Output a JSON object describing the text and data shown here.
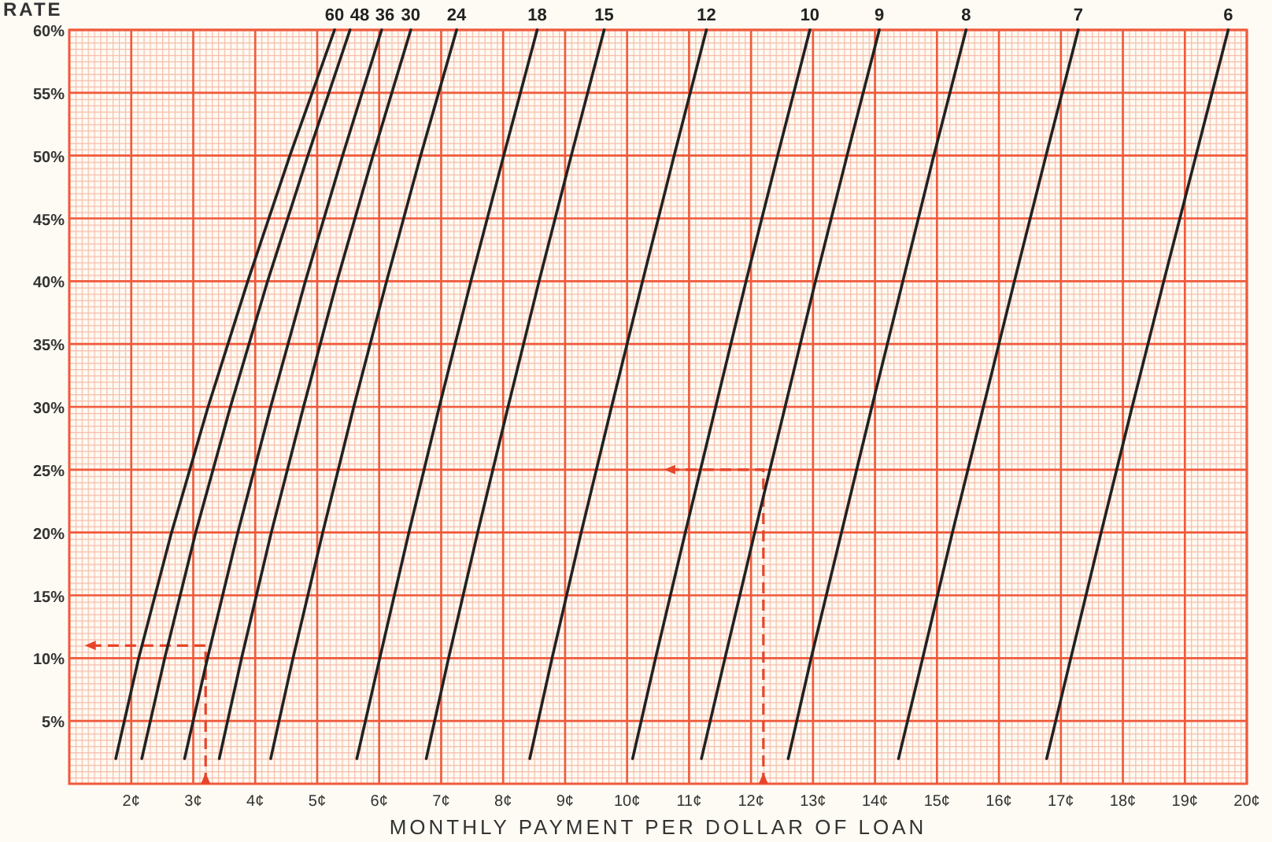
{
  "chart_data": {
    "type": "line",
    "ylabel": "RATE",
    "xlabel": "MONTHLY PAYMENT PER DOLLAR OF LOAN",
    "xlim": [
      1,
      20
    ],
    "xticks": [
      {
        "value": 2,
        "label": "2¢"
      },
      {
        "value": 3,
        "label": "3¢"
      },
      {
        "value": 4,
        "label": "4¢"
      },
      {
        "value": 5,
        "label": "5¢"
      },
      {
        "value": 6,
        "label": "6¢"
      },
      {
        "value": 7,
        "label": "7¢"
      },
      {
        "value": 8,
        "label": "8¢"
      },
      {
        "value": 9,
        "label": "9¢"
      },
      {
        "value": 10,
        "label": "10¢"
      },
      {
        "value": 11,
        "label": "11¢"
      },
      {
        "value": 12,
        "label": "12¢"
      },
      {
        "value": 13,
        "label": "13¢"
      },
      {
        "value": 14,
        "label": "14¢"
      },
      {
        "value": 15,
        "label": "15¢"
      },
      {
        "value": 16,
        "label": "16¢"
      },
      {
        "value": 17,
        "label": "17¢"
      },
      {
        "value": 18,
        "label": "18¢"
      },
      {
        "value": 19,
        "label": "19¢"
      },
      {
        "value": 20,
        "label": "20¢"
      }
    ],
    "ylim": [
      0,
      60
    ],
    "yticks": [
      {
        "value": 5,
        "label": "5%"
      },
      {
        "value": 10,
        "label": "10%"
      },
      {
        "value": 15,
        "label": "15%"
      },
      {
        "value": 20,
        "label": "20%"
      },
      {
        "value": 25,
        "label": "25%"
      },
      {
        "value": 30,
        "label": "30%"
      },
      {
        "value": 35,
        "label": "35%"
      },
      {
        "value": 40,
        "label": "40%"
      },
      {
        "value": 45,
        "label": "45%"
      },
      {
        "value": 50,
        "label": "50%"
      },
      {
        "value": 55,
        "label": "55%"
      },
      {
        "value": 60,
        "label": "60%"
      }
    ],
    "grid": true,
    "marker": "none",
    "line_style": "solid",
    "series": [
      {
        "name": "60",
        "color": "#222222",
        "x": [
          1.75,
          2.12,
          2.65,
          3.24,
          3.88,
          4.56,
          5.28
        ],
        "values": [
          2,
          10,
          20,
          30,
          40,
          50,
          60
        ]
      },
      {
        "name": "48",
        "color": "#222222",
        "x": [
          2.17,
          2.54,
          3.04,
          3.6,
          4.2,
          4.85,
          5.53
        ],
        "values": [
          2,
          10,
          20,
          30,
          40,
          50,
          60
        ]
      },
      {
        "name": "36",
        "color": "#222222",
        "x": [
          2.86,
          3.23,
          3.72,
          4.25,
          4.81,
          5.41,
          6.04
        ],
        "values": [
          2,
          10,
          20,
          30,
          40,
          50,
          60
        ]
      },
      {
        "name": "30",
        "color": "#222222",
        "x": [
          3.42,
          3.78,
          4.26,
          4.78,
          5.32,
          5.9,
          6.51
        ],
        "values": [
          2,
          10,
          20,
          30,
          40,
          50,
          60
        ]
      },
      {
        "name": "24",
        "color": "#222222",
        "x": [
          4.25,
          4.61,
          5.09,
          5.59,
          6.12,
          6.67,
          7.25
        ],
        "values": [
          2,
          10,
          20,
          30,
          40,
          50,
          60
        ]
      },
      {
        "name": "18",
        "color": "#222222",
        "x": [
          5.64,
          6.01,
          6.48,
          6.97,
          7.48,
          8.01,
          8.55
        ],
        "values": [
          2,
          10,
          20,
          30,
          40,
          50,
          60
        ]
      },
      {
        "name": "15",
        "color": "#222222",
        "x": [
          6.76,
          7.12,
          7.59,
          8.08,
          8.58,
          9.1,
          9.63
        ],
        "values": [
          2,
          10,
          20,
          30,
          40,
          50,
          60
        ]
      },
      {
        "name": "12",
        "color": "#222222",
        "x": [
          8.43,
          8.79,
          9.26,
          9.75,
          10.25,
          10.76,
          11.28
        ],
        "values": [
          2,
          10,
          20,
          30,
          40,
          50,
          60
        ]
      },
      {
        "name": "10",
        "color": "#222222",
        "x": [
          10.09,
          10.46,
          10.94,
          11.43,
          11.92,
          12.43,
          12.95
        ],
        "values": [
          2,
          10,
          20,
          30,
          40,
          50,
          60
        ]
      },
      {
        "name": "9",
        "color": "#222222",
        "x": [
          11.2,
          11.58,
          12.06,
          12.55,
          13.04,
          13.55,
          14.07
        ],
        "values": [
          2,
          10,
          20,
          30,
          40,
          50,
          60
        ]
      },
      {
        "name": "8",
        "color": "#222222",
        "x": [
          12.6,
          12.97,
          13.46,
          13.95,
          14.45,
          14.95,
          15.47
        ],
        "values": [
          2,
          10,
          20,
          30,
          40,
          50,
          60
        ]
      },
      {
        "name": "7",
        "color": "#222222",
        "x": [
          14.38,
          14.77,
          15.25,
          15.75,
          16.25,
          16.76,
          17.28
        ],
        "values": [
          2,
          10,
          20,
          30,
          40,
          50,
          60
        ]
      },
      {
        "name": "6",
        "color": "#222222",
        "x": [
          16.77,
          17.16,
          17.65,
          18.15,
          18.66,
          19.18,
          19.7
        ],
        "values": [
          2,
          10,
          20,
          30,
          40,
          50,
          60
        ]
      }
    ]
  }
}
